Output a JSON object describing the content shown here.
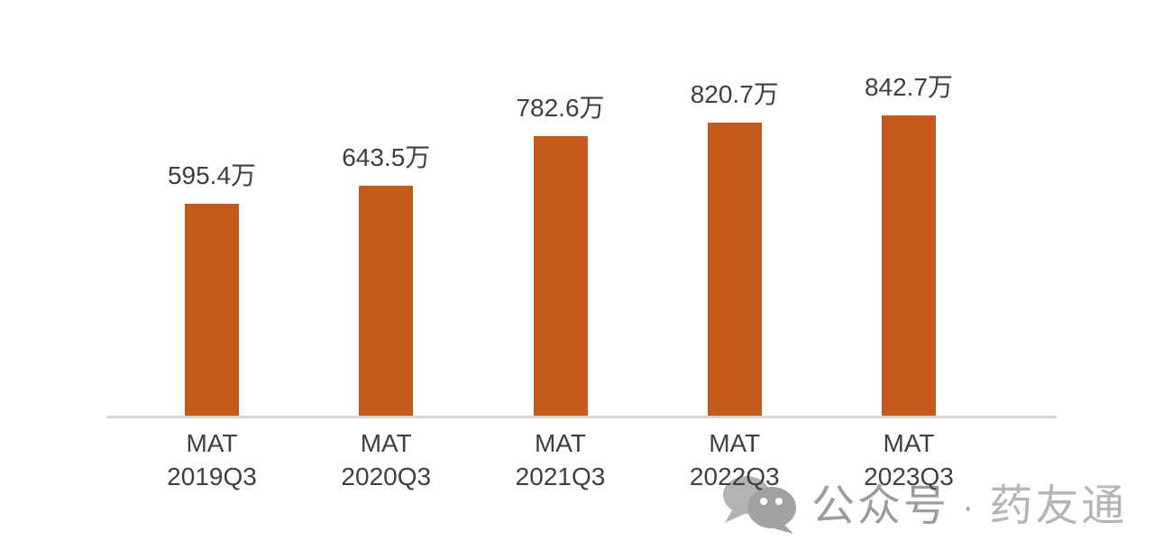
{
  "chart_data": {
    "type": "bar",
    "title": "",
    "xlabel": "",
    "ylabel": "",
    "unit": "万",
    "grid": false,
    "legend": null,
    "ylim": [
      0,
      880
    ],
    "categories": [
      {
        "line1": "MAT",
        "line2": "2019Q3"
      },
      {
        "line1": "MAT",
        "line2": "2020Q3"
      },
      {
        "line1": "MAT",
        "line2": "2021Q3"
      },
      {
        "line1": "MAT",
        "line2": "2022Q3"
      },
      {
        "line1": "MAT",
        "line2": "2023Q3"
      }
    ],
    "values": [
      595.4,
      643.5,
      782.6,
      820.7,
      842.7
    ],
    "labels": [
      "595.4万",
      "643.5万",
      "782.6万",
      "820.7万",
      "842.7万"
    ],
    "bar_color": "#c4591b",
    "axis_line_color": "#d6d6d6",
    "label_color": "#3f3f3f"
  },
  "watermark": {
    "icon": "wechat-icon",
    "prefix": "公众号",
    "separator": "·",
    "name": "药友通",
    "prefix_color": "#9c9c9c",
    "separator_color": "#a8a8a8",
    "name_color": "#b5b5b5",
    "icon_back_color": "#b3b3b3",
    "icon_front_color": "#a2a2a2"
  }
}
